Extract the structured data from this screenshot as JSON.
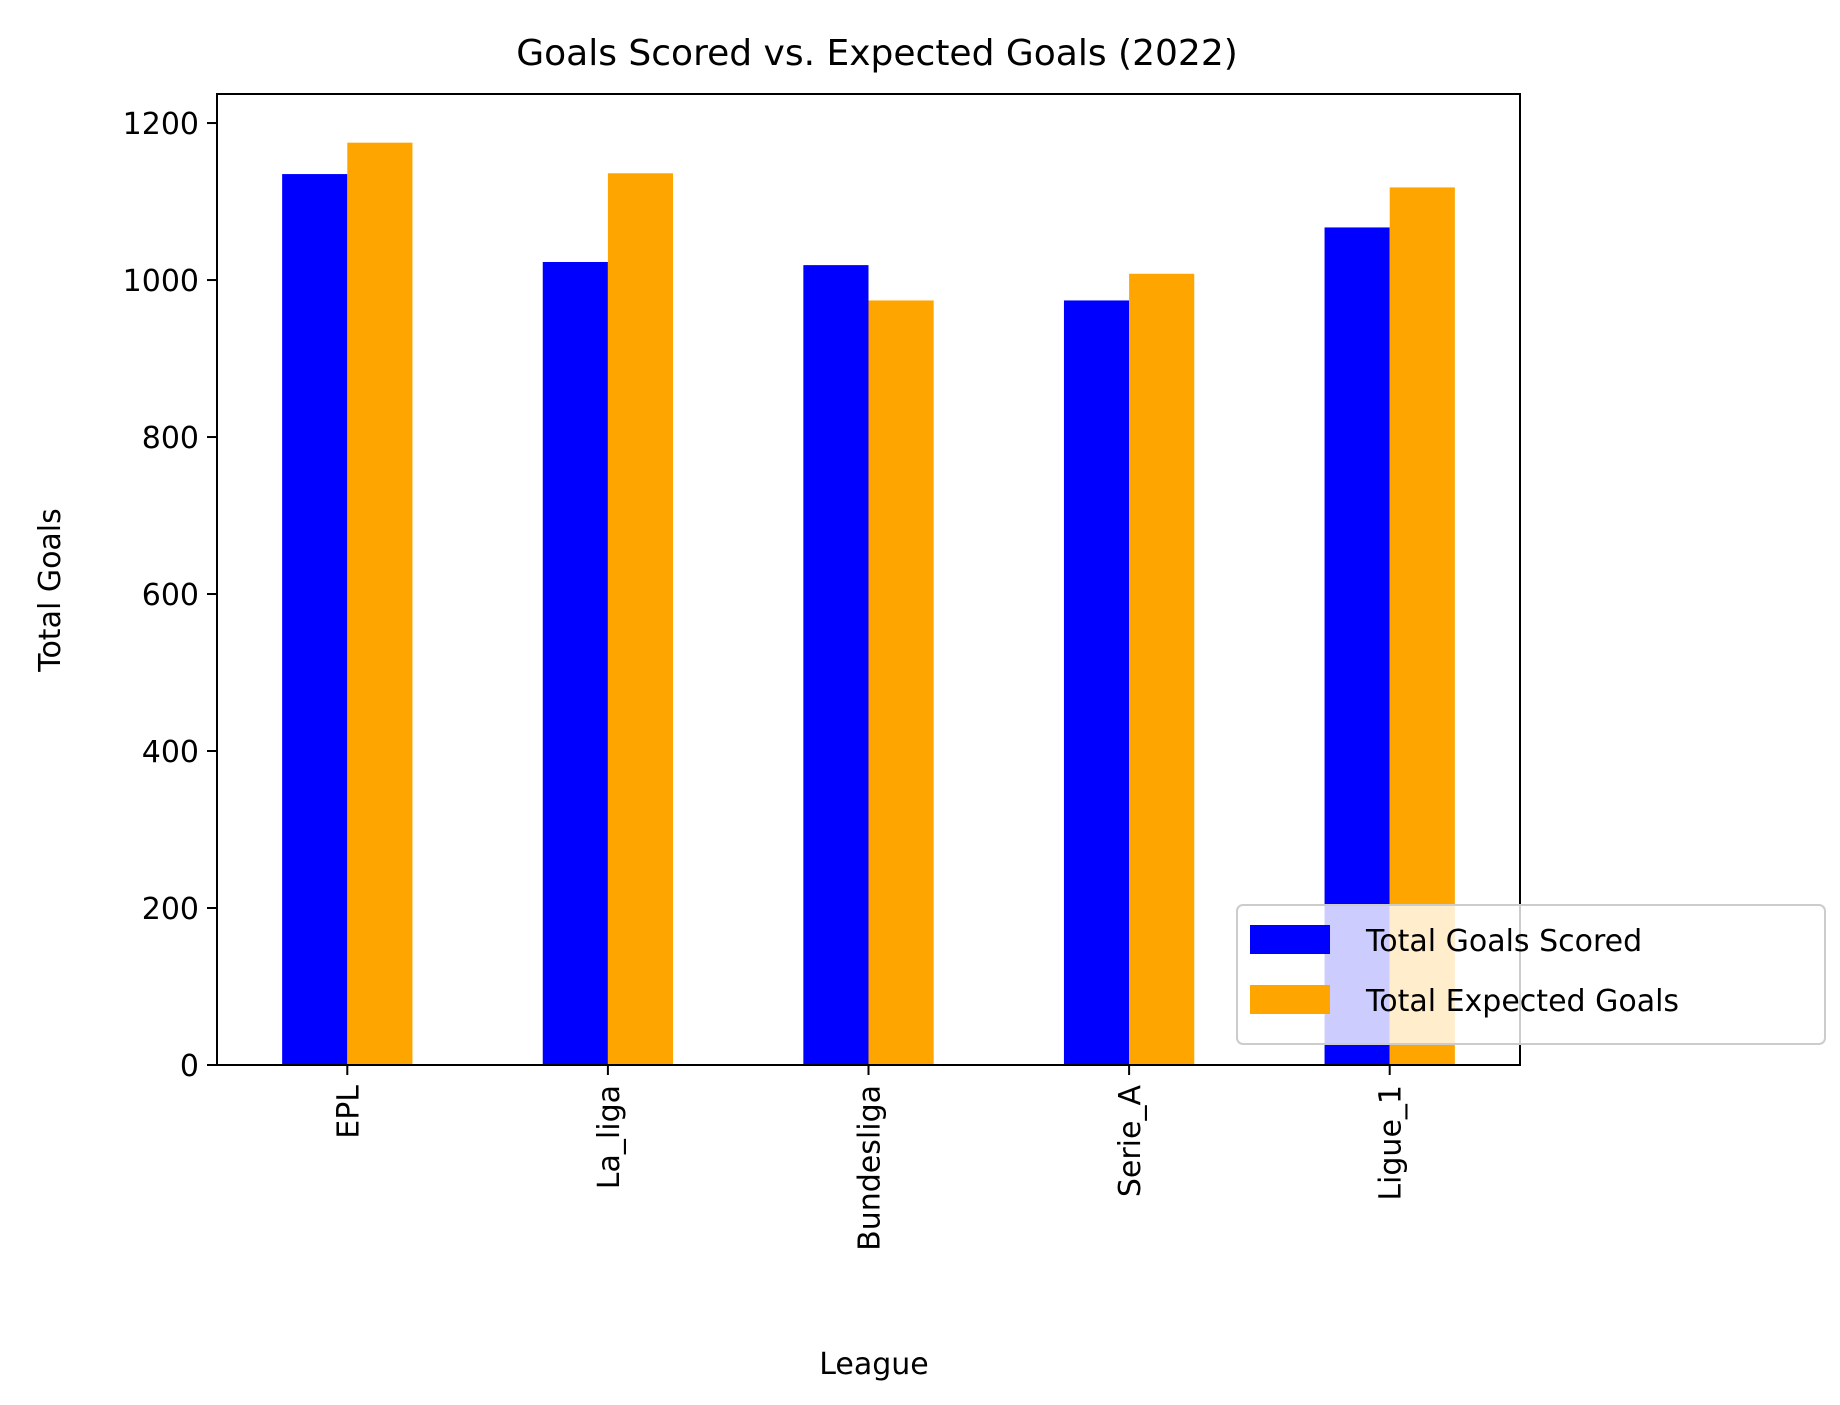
{
  "chart_data": {
    "type": "bar",
    "title": "Goals Scored vs. Expected Goals (2022)",
    "xlabel": "League",
    "ylabel": "Total Goals",
    "categories": [
      "EPL",
      "La_liga",
      "Bundesliga",
      "Serie_A",
      "Ligue_1"
    ],
    "series": [
      {
        "name": "Total Goals Scored",
        "color": "#0000ff",
        "values": [
          1135,
          1023,
          1019,
          974,
          1067
        ]
      },
      {
        "name": "Total Expected Goals",
        "color": "#ffa500",
        "values": [
          1175,
          1136,
          974,
          1008,
          1118
        ]
      }
    ],
    "ylim": [
      0,
      1237
    ],
    "yticks": [
      0,
      200,
      400,
      600,
      800,
      1000,
      1200
    ],
    "grid": false,
    "legend_position": "lower-right"
  }
}
